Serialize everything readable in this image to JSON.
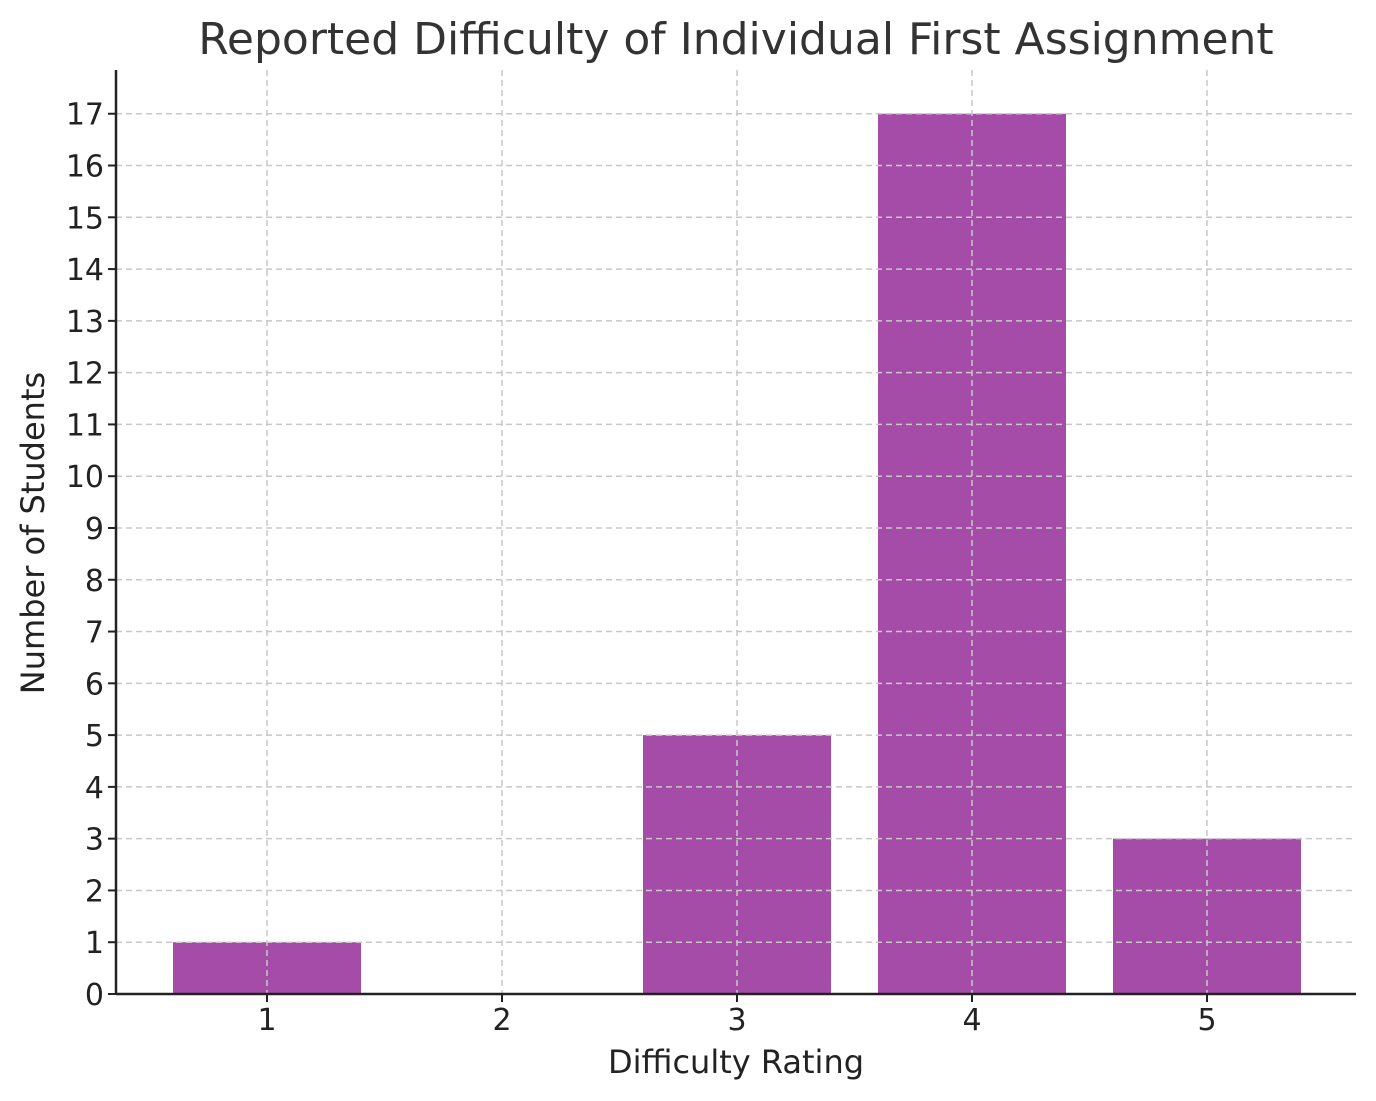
{
  "chart_data": {
    "type": "bar",
    "title": "Reported Difficulty of Individual First Assignment",
    "xlabel": "Difficulty Rating",
    "ylabel": "Number of Students",
    "categories": [
      "1",
      "2",
      "3",
      "4",
      "5"
    ],
    "values": [
      1,
      0,
      5,
      17,
      3
    ],
    "ylim": [
      0,
      17.85
    ],
    "yticks": [
      0,
      1,
      2,
      3,
      4,
      5,
      6,
      7,
      8,
      9,
      10,
      11,
      12,
      13,
      14,
      15,
      16,
      17
    ],
    "grid": true,
    "bar_color": "#a44ca8",
    "legend": "none"
  }
}
